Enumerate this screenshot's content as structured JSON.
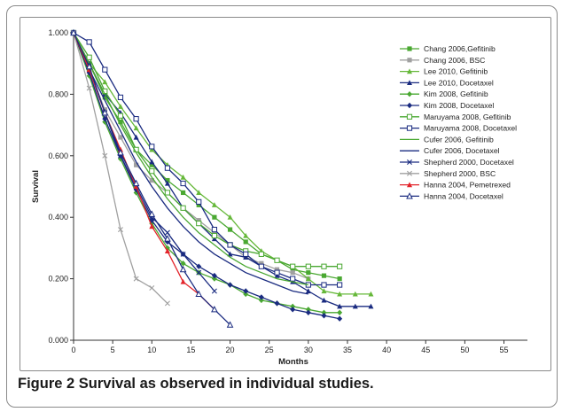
{
  "caption": {
    "label": "Figure 2",
    "text": "Survival as observed in individual studies."
  },
  "chart_data": {
    "type": "line",
    "xlabel": "Months",
    "ylabel": "Survival",
    "xlim": [
      0,
      58
    ],
    "ylim": [
      0,
      1
    ],
    "x_ticks": [
      0,
      5,
      10,
      15,
      20,
      25,
      30,
      35,
      40,
      45,
      50,
      55
    ],
    "x_tick_labels": [
      "0",
      "5",
      "10",
      "15",
      "20",
      "25",
      "30",
      "35",
      "40",
      "45",
      "50",
      "55"
    ],
    "y_ticks": [
      0,
      0.2,
      0.4,
      0.6,
      0.8,
      1.0
    ],
    "y_tick_labels": [
      "0.000",
      "0.200",
      "0.400",
      "0.600",
      "0.800",
      "1.000"
    ],
    "grid": false,
    "legend_position": "right",
    "series": [
      {
        "name": "Chang 2006,Gefitinib",
        "color": "#4aa832",
        "marker": "square-filled",
        "x": [
          0,
          2,
          4,
          6,
          8,
          10,
          12,
          14,
          16,
          18,
          20,
          22,
          24,
          26,
          28,
          30,
          32,
          34
        ],
        "y": [
          1.0,
          0.9,
          0.79,
          0.71,
          0.62,
          0.57,
          0.52,
          0.48,
          0.44,
          0.4,
          0.36,
          0.32,
          0.28,
          0.26,
          0.23,
          0.22,
          0.21,
          0.2
        ]
      },
      {
        "name": "Chang 2006, BSC",
        "color": "#a0a0a0",
        "marker": "square-filled",
        "x": [
          0,
          2,
          4,
          6,
          8,
          10,
          12,
          14,
          16,
          18,
          20,
          22,
          24,
          26,
          28,
          30
        ],
        "y": [
          1.0,
          0.88,
          0.75,
          0.66,
          0.57,
          0.52,
          0.48,
          0.43,
          0.39,
          0.35,
          0.31,
          0.27,
          0.25,
          0.23,
          0.22,
          0.2
        ]
      },
      {
        "name": "Lee 2010, Gefitinib",
        "color": "#66b83a",
        "marker": "triangle-filled",
        "x": [
          0,
          2,
          4,
          6,
          8,
          10,
          12,
          14,
          16,
          18,
          20,
          22,
          24,
          26,
          28,
          30,
          32,
          34,
          36,
          38
        ],
        "y": [
          1.0,
          0.9,
          0.84,
          0.76,
          0.69,
          0.62,
          0.57,
          0.53,
          0.48,
          0.44,
          0.4,
          0.34,
          0.29,
          0.26,
          0.24,
          0.2,
          0.16,
          0.15,
          0.15,
          0.15
        ]
      },
      {
        "name": "Lee 2010, Docetaxel",
        "color": "#1a2b80",
        "marker": "triangle-filled",
        "x": [
          0,
          2,
          4,
          6,
          8,
          10,
          12,
          14,
          16,
          18,
          20,
          22,
          24,
          26,
          28,
          30,
          32,
          34,
          36,
          38
        ],
        "y": [
          1.0,
          0.9,
          0.8,
          0.74,
          0.66,
          0.58,
          0.51,
          0.43,
          0.38,
          0.33,
          0.28,
          0.27,
          0.24,
          0.21,
          0.19,
          0.16,
          0.13,
          0.11,
          0.11,
          0.11
        ]
      },
      {
        "name": "Kim 2008, Gefitinib",
        "color": "#4aa832",
        "marker": "diamond-filled",
        "x": [
          0,
          2,
          4,
          6,
          8,
          10,
          12,
          14,
          16,
          18,
          20,
          22,
          24,
          26,
          28,
          30,
          32,
          34
        ],
        "y": [
          1.0,
          0.86,
          0.71,
          0.59,
          0.48,
          0.38,
          0.3,
          0.25,
          0.22,
          0.2,
          0.18,
          0.15,
          0.13,
          0.12,
          0.11,
          0.1,
          0.09,
          0.09
        ]
      },
      {
        "name": "Kim 2008, Docetaxel",
        "color": "#1a2b80",
        "marker": "diamond-filled",
        "x": [
          0,
          2,
          4,
          6,
          8,
          10,
          12,
          14,
          16,
          18,
          20,
          22,
          24,
          26,
          28,
          30,
          32,
          34
        ],
        "y": [
          1.0,
          0.87,
          0.72,
          0.6,
          0.49,
          0.39,
          0.32,
          0.28,
          0.24,
          0.21,
          0.18,
          0.16,
          0.14,
          0.12,
          0.1,
          0.09,
          0.08,
          0.07
        ]
      },
      {
        "name": "Maruyama 2008, Gefitinib",
        "color": "#4aa832",
        "marker": "square-open",
        "x": [
          0,
          2,
          4,
          6,
          8,
          10,
          12,
          14,
          16,
          18,
          20,
          22,
          24,
          26,
          28,
          30,
          32,
          34
        ],
        "y": [
          1.0,
          0.92,
          0.81,
          0.73,
          0.62,
          0.55,
          0.48,
          0.43,
          0.38,
          0.34,
          0.31,
          0.29,
          0.28,
          0.26,
          0.24,
          0.24,
          0.24,
          0.24
        ]
      },
      {
        "name": "Maruyama 2008, Docetaxel",
        "color": "#1a2b80",
        "marker": "square-open",
        "x": [
          0,
          2,
          4,
          6,
          8,
          10,
          12,
          14,
          16,
          18,
          20,
          22,
          24,
          26,
          28,
          30,
          32,
          34
        ],
        "y": [
          1.0,
          0.97,
          0.88,
          0.79,
          0.72,
          0.63,
          0.56,
          0.51,
          0.45,
          0.36,
          0.31,
          0.28,
          0.24,
          0.22,
          0.2,
          0.18,
          0.18,
          0.18
        ]
      },
      {
        "name": "Cufer 2006, Gefitinib",
        "color": "#4aa832",
        "marker": "none",
        "x": [
          0,
          2,
          4,
          6,
          8,
          10,
          12,
          14,
          16,
          18,
          20,
          22,
          24,
          26,
          28,
          30
        ],
        "y": [
          1.0,
          0.9,
          0.8,
          0.7,
          0.61,
          0.53,
          0.46,
          0.4,
          0.35,
          0.31,
          0.27,
          0.24,
          0.22,
          0.2,
          0.19,
          0.18
        ]
      },
      {
        "name": "Cufer 2006, Docetaxel",
        "color": "#1a2b80",
        "marker": "none",
        "x": [
          0,
          2,
          4,
          6,
          8,
          10,
          12,
          14,
          16,
          18,
          20,
          22,
          24,
          26,
          28,
          30
        ],
        "y": [
          1.0,
          0.88,
          0.78,
          0.68,
          0.58,
          0.5,
          0.43,
          0.37,
          0.32,
          0.28,
          0.25,
          0.22,
          0.2,
          0.18,
          0.16,
          0.15
        ]
      },
      {
        "name": "Shepherd 2000, Docetaxel",
        "color": "#1a2b80",
        "marker": "x",
        "x": [
          0,
          2,
          4,
          6,
          8,
          10,
          12,
          14,
          16,
          18
        ],
        "y": [
          1.0,
          0.88,
          0.74,
          0.6,
          0.5,
          0.4,
          0.35,
          0.28,
          0.22,
          0.16
        ]
      },
      {
        "name": "Shepherd 2000, BSC",
        "color": "#a0a0a0",
        "marker": "x",
        "x": [
          0,
          2,
          4,
          6,
          8,
          10,
          12
        ],
        "y": [
          1.0,
          0.82,
          0.6,
          0.36,
          0.2,
          0.17,
          0.12
        ]
      },
      {
        "name": "Hanna 2004, Pemetrexed",
        "color": "#e3242b",
        "marker": "triangle-filled",
        "x": [
          0,
          2,
          4,
          6,
          8,
          10,
          12,
          14,
          16,
          18
        ],
        "y": [
          1.0,
          0.88,
          0.74,
          0.62,
          0.5,
          0.37,
          0.29,
          0.19,
          0.15,
          0.1
        ]
      },
      {
        "name": "Hanna 2004, Docetaxel",
        "color": "#1a2b80",
        "marker": "triangle-open",
        "x": [
          0,
          2,
          4,
          6,
          8,
          10,
          12,
          14,
          16,
          18,
          20
        ],
        "y": [
          1.0,
          0.89,
          0.74,
          0.61,
          0.51,
          0.41,
          0.33,
          0.23,
          0.15,
          0.1,
          0.05
        ]
      }
    ]
  }
}
